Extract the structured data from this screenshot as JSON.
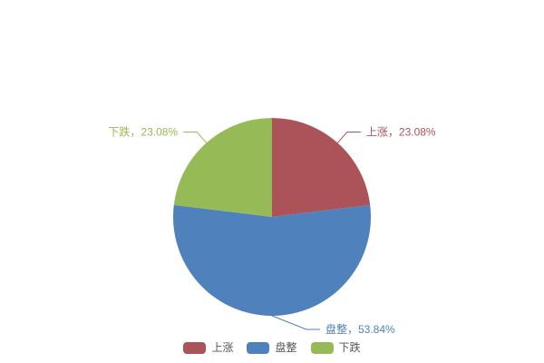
{
  "chart_data": {
    "type": "pie",
    "title": "",
    "start_angle_deg": 0,
    "direction": "clockwise",
    "background": "#ffffff",
    "slices": [
      {
        "name": "上涨",
        "value": 23.08,
        "label": "上涨，23.08%",
        "color": "#AC535A"
      },
      {
        "name": "盘整",
        "value": 53.84,
        "label": "盘整，53.84%",
        "color": "#4F81BD"
      },
      {
        "name": "下跌",
        "value": 23.08,
        "label": "下跌，23.08%",
        "color": "#96BA55"
      }
    ],
    "legend": {
      "position": "bottom",
      "items": [
        "上涨",
        "盘整",
        "下跌"
      ],
      "text_color": "#555555"
    }
  }
}
